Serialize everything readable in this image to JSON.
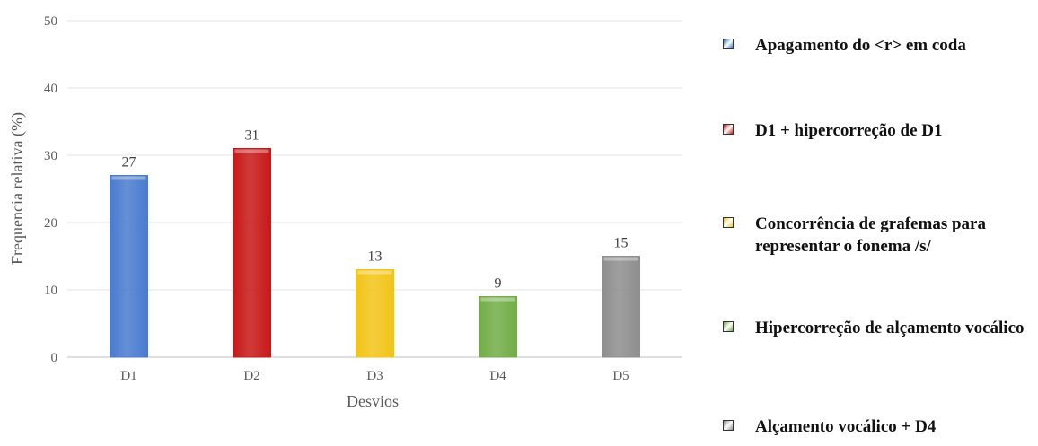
{
  "chart_data": {
    "type": "bar",
    "categories": [
      "D1",
      "D2",
      "D3",
      "D4",
      "D5"
    ],
    "values": [
      27,
      31,
      13,
      9,
      15
    ],
    "data_labels": [
      "27",
      "31",
      "13",
      "9",
      "15"
    ],
    "colors": [
      "#4a7bd0",
      "#c81818",
      "#f2c418",
      "#72ad47",
      "#8e8e8e"
    ],
    "xlabel": "Desvios",
    "ylabel": "Frequencia relativa (%)",
    "ylim": [
      0,
      50
    ],
    "yticks": [
      "0",
      "10",
      "20",
      "30",
      "40",
      "50"
    ],
    "grid": true,
    "legend_position": "right",
    "legend": [
      {
        "label": "Apagamento do <r> em coda",
        "color": "#2e6db4"
      },
      {
        "label": "D1 + hipercorreção de D1",
        "color": "#c81818"
      },
      {
        "label": "Concorrência de grafemas para representar o fonema /s/",
        "color": "#f2c418"
      },
      {
        "label": "Hipercorreção de alçamento vocálico",
        "color": "#72ad47"
      },
      {
        "label": "Alçamento vocálico + D4",
        "color": "#8e8e8e"
      }
    ]
  }
}
